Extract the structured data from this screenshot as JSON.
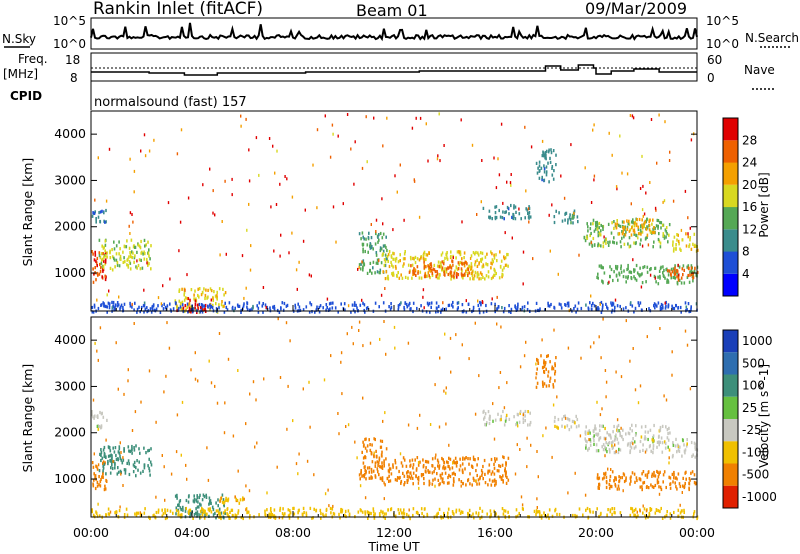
{
  "header": {
    "station": "Rankin Inlet (fitACF)",
    "beam": "Beam 01",
    "date": "09/Mar/2009"
  },
  "noise_panel": {
    "left_label": "N.Sky",
    "right_label": "N.Search",
    "left_ticks": [
      "10^5",
      "10^0"
    ],
    "right_ticks": [
      "10^5",
      "10^0"
    ]
  },
  "freq_panel": {
    "left_label_top": "Freq.",
    "left_label_unit": "[MHz]",
    "right_label": "Nave",
    "left_ticks": [
      "18",
      "8"
    ],
    "right_ticks": [
      "60",
      "0"
    ]
  },
  "cpid_panel": {
    "label": "CPID",
    "value": "normalsound (fast) 157"
  },
  "time_axis": {
    "label": "Time UT",
    "ticks": [
      "00:00",
      "04:00",
      "08:00",
      "12:00",
      "16:00",
      "20:00",
      "00:00"
    ]
  },
  "chart_data": [
    {
      "type": "heatmap",
      "title": "",
      "ylabel": "Slant Range [km]",
      "xlabel": "",
      "x_range_hours": [
        0,
        24
      ],
      "ylim": [
        180,
        4500
      ],
      "y_ticks": [
        1000,
        2000,
        3000,
        4000
      ],
      "colorbar": {
        "label": "Power [dB]",
        "ticks": [
          "4",
          "8",
          "12",
          "16",
          "20",
          "24",
          "28"
        ],
        "range": [
          0,
          30
        ],
        "colors": [
          "#0000ff",
          "#1e4fd6",
          "#3a8c8c",
          "#55a855",
          "#d8d820",
          "#f4a000",
          "#ee6000",
          "#e00000"
        ]
      },
      "regions": [
        {
          "x": [
            0.0,
            0.6
          ],
          "y": [
            780,
            1500
          ],
          "value": 26
        },
        {
          "x": [
            0.3,
            2.4
          ],
          "y": [
            1100,
            1750
          ],
          "value": 16
        },
        {
          "x": [
            0.0,
            0.6
          ],
          "y": [
            2100,
            2500
          ],
          "value": 8
        },
        {
          "x": [
            3.3,
            5.3
          ],
          "y": [
            180,
            700
          ],
          "value": 18
        },
        {
          "x": [
            3.6,
            4.7
          ],
          "y": [
            180,
            450
          ],
          "value": 28
        },
        {
          "x": [
            10.6,
            11.7
          ],
          "y": [
            1000,
            1900
          ],
          "value": 12
        },
        {
          "x": [
            11.5,
            16.5
          ],
          "y": [
            900,
            1500
          ],
          "value": 18
        },
        {
          "x": [
            12.5,
            15.0
          ],
          "y": [
            950,
            1300
          ],
          "value": 24
        },
        {
          "x": [
            15.5,
            17.4
          ],
          "y": [
            2200,
            2500
          ],
          "value": 9
        },
        {
          "x": [
            17.6,
            18.4
          ],
          "y": [
            3000,
            3700
          ],
          "value": 9
        },
        {
          "x": [
            18.3,
            19.3
          ],
          "y": [
            2100,
            2400
          ],
          "value": 10
        },
        {
          "x": [
            19.5,
            22.9
          ],
          "y": [
            1600,
            2200
          ],
          "value": 14
        },
        {
          "x": [
            20.7,
            22.3
          ],
          "y": [
            1850,
            2200
          ],
          "value": 21
        },
        {
          "x": [
            20.0,
            24.0
          ],
          "y": [
            800,
            1200
          ],
          "value": 13
        },
        {
          "x": [
            22.8,
            24.0
          ],
          "y": [
            850,
            1150
          ],
          "value": 24
        },
        {
          "x": [
            23.0,
            24.0
          ],
          "y": [
            1500,
            1900
          ],
          "value": 18
        },
        {
          "x": [
            0.0,
            24.0
          ],
          "y": [
            180,
            400
          ],
          "value": 6
        }
      ]
    },
    {
      "type": "heatmap",
      "title": "",
      "ylabel": "Slant Range [km]",
      "xlabel": "",
      "x_range_hours": [
        0,
        24
      ],
      "ylim": [
        180,
        4500
      ],
      "y_ticks": [
        1000,
        2000,
        3000,
        4000
      ],
      "colorbar": {
        "label": "Velocity [m s^-1]",
        "ticks": [
          "1000",
          "500",
          "100",
          "25",
          "-25",
          "-100",
          "-500",
          "-1000"
        ],
        "colors": [
          "#1a3fb8",
          "#2e6eb0",
          "#3d8f7a",
          "#66c040",
          "#c8c8c0",
          "#f0c000",
          "#f08000",
          "#e02000"
        ]
      },
      "regions": [
        {
          "x": [
            0.0,
            0.6
          ],
          "y": [
            800,
            1450
          ],
          "value": -200
        },
        {
          "x": [
            0.3,
            2.4
          ],
          "y": [
            1100,
            1750
          ],
          "value": 150
        },
        {
          "x": [
            0.0,
            0.6
          ],
          "y": [
            2100,
            2500
          ],
          "value": 0
        },
        {
          "x": [
            3.3,
            5.3
          ],
          "y": [
            180,
            700
          ],
          "value": 200
        },
        {
          "x": [
            5.0,
            6.0
          ],
          "y": [
            500,
            650
          ],
          "value": -80
        },
        {
          "x": [
            10.6,
            11.7
          ],
          "y": [
            1000,
            1900
          ],
          "value": -200
        },
        {
          "x": [
            11.5,
            16.5
          ],
          "y": [
            900,
            1500
          ],
          "value": -300
        },
        {
          "x": [
            15.5,
            17.4
          ],
          "y": [
            2200,
            2500
          ],
          "value": 0
        },
        {
          "x": [
            17.6,
            18.4
          ],
          "y": [
            3000,
            3700
          ],
          "value": -300
        },
        {
          "x": [
            18.3,
            19.3
          ],
          "y": [
            2100,
            2400
          ],
          "value": 0
        },
        {
          "x": [
            19.5,
            22.9
          ],
          "y": [
            1600,
            2200
          ],
          "value": 0
        },
        {
          "x": [
            20.0,
            24.0
          ],
          "y": [
            800,
            1200
          ],
          "value": -300
        },
        {
          "x": [
            23.0,
            24.0
          ],
          "y": [
            1500,
            1900
          ],
          "value": 0
        },
        {
          "x": [
            0.0,
            24.0
          ],
          "y": [
            180,
            400
          ],
          "value": -60
        }
      ]
    }
  ]
}
